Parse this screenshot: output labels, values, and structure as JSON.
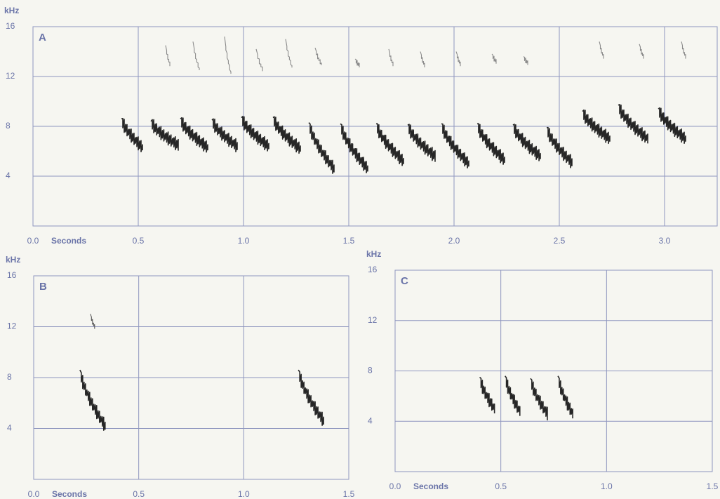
{
  "chart_data": [
    {
      "type": "spectrogram",
      "panel": "A",
      "y_label": "kHz",
      "x_label": "Seconds",
      "xlim": [
        0,
        3.25
      ],
      "xticks": [
        {
          "value": 0,
          "label": "0.0"
        },
        0.5,
        {
          "value": 1,
          "label": "1.0"
        },
        1.5,
        {
          "value": 2,
          "label": "2.0"
        },
        2.5,
        {
          "value": 3,
          "label": "3.0"
        }
      ],
      "ylim": [
        0,
        16
      ],
      "yticks": [
        4,
        8,
        12,
        16
      ],
      "grid": true,
      "series": [
        {
          "color": "#262626",
          "x_start": [
            0.42,
            0.56,
            0.7,
            0.85,
            0.99,
            1.14,
            1.31,
            1.46,
            1.63,
            1.78,
            1.94,
            2.11,
            2.28,
            2.44,
            2.61,
            2.78,
            2.97
          ],
          "x_end": [
            0.52,
            0.69,
            0.83,
            0.97,
            1.12,
            1.27,
            1.43,
            1.59,
            1.76,
            1.91,
            2.07,
            2.24,
            2.41,
            2.56,
            2.74,
            2.92,
            3.1
          ],
          "f_start": [
            8.6,
            8.4,
            8.6,
            8.5,
            8.7,
            8.7,
            8.3,
            8.2,
            8.2,
            8.1,
            8.2,
            8.2,
            8.1,
            7.9,
            9.2,
            9.7,
            9.4
          ],
          "f_end": [
            6.3,
            6.5,
            6.3,
            6.4,
            6.4,
            6.2,
            4.6,
            4.6,
            5.2,
            5.6,
            5.0,
            5.3,
            5.6,
            5.1,
            7.0,
            7.0,
            7.0
          ]
        },
        {
          "color": "#8a8a8a",
          "x_start": [
            0.63,
            0.76,
            0.91,
            1.06,
            1.2,
            1.34,
            1.53,
            1.69,
            1.84,
            2.01,
            2.18,
            2.33,
            2.69,
            2.88,
            3.08
          ],
          "x_end": [
            0.65,
            0.79,
            0.94,
            1.09,
            1.23,
            1.37,
            1.55,
            1.71,
            1.86,
            2.03,
            2.2,
            2.35,
            2.71,
            2.9,
            3.1
          ],
          "f_start": [
            14.5,
            14.8,
            15.2,
            14.2,
            15.0,
            14.3,
            13.4,
            14.2,
            14.0,
            14.0,
            13.8,
            13.6,
            14.8,
            14.6,
            14.8
          ],
          "f_end": [
            13.0,
            12.6,
            12.3,
            12.6,
            12.8,
            13.0,
            12.9,
            13.0,
            12.9,
            13.0,
            13.2,
            13.1,
            13.6,
            13.6,
            13.6
          ]
        }
      ]
    },
    {
      "type": "spectrogram",
      "panel": "B",
      "y_label": "kHz",
      "x_label": "Seconds",
      "xlim": [
        0,
        1.5
      ],
      "xticks": [
        {
          "value": 0,
          "label": "0.0"
        },
        0.5,
        {
          "value": 1,
          "label": "1.0"
        },
        1.5
      ],
      "ylim": [
        0,
        16
      ],
      "yticks": [
        4,
        8,
        12,
        16
      ],
      "grid": true,
      "series": [
        {
          "color": "#262626",
          "x_start": [
            0.22,
            1.26
          ],
          "x_end": [
            0.34,
            1.38
          ],
          "f_start": [
            8.6,
            8.6
          ],
          "f_end": [
            4.2,
            4.6
          ]
        },
        {
          "color": "#555555",
          "x_start": [
            0.27
          ],
          "x_end": [
            0.29
          ],
          "f_start": [
            13.0
          ],
          "f_end": [
            12.0
          ]
        }
      ]
    },
    {
      "type": "spectrogram",
      "panel": "C",
      "y_label": "kHz",
      "x_label": "Seconds",
      "xlim": [
        0,
        1.5
      ],
      "xticks": [
        {
          "value": 0,
          "label": "0.0"
        },
        0.5,
        {
          "value": 1,
          "label": "1.0"
        },
        1.5
      ],
      "ylim": [
        0,
        16
      ],
      "yticks": [
        4,
        8,
        12,
        16
      ],
      "grid": true,
      "series": [
        {
          "color": "#262626",
          "x_start": [
            0.4,
            0.52,
            0.64,
            0.77
          ],
          "x_end": [
            0.47,
            0.59,
            0.72,
            0.84
          ],
          "f_start": [
            7.5,
            7.6,
            7.4,
            7.6
          ],
          "f_end": [
            5.0,
            4.8,
            4.6,
            4.6
          ]
        }
      ]
    }
  ]
}
